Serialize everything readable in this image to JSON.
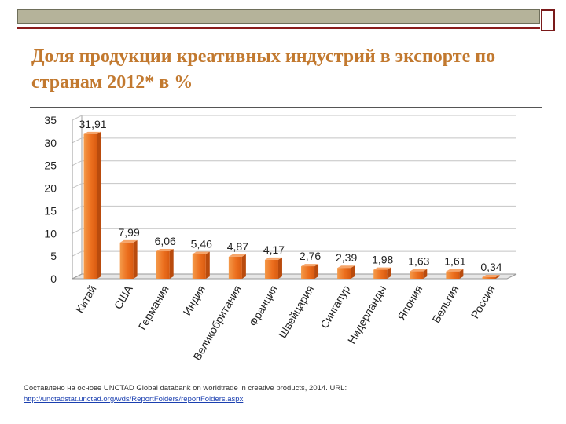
{
  "title": "Доля продукции креативных индустрий в экспорте по странам 2012* в %",
  "chart_data": {
    "type": "bar",
    "title": "Доля продукции креативных индустрий в экспорте по странам 2012* в %",
    "categories": [
      "Китай",
      "США",
      "Германия",
      "Индия",
      "Великобритания",
      "Франция",
      "Швейцария",
      "Сингапур",
      "Нидерланды",
      "Япония",
      "Бельгия",
      "Россия"
    ],
    "values": [
      31.91,
      7.99,
      6.06,
      5.46,
      4.87,
      4.17,
      2.76,
      2.39,
      1.98,
      1.63,
      1.61,
      0.34
    ],
    "data_labels": [
      "31,91",
      "7,99",
      "6,06",
      "5,46",
      "4,87",
      "4,17",
      "2,76",
      "2,39",
      "1,98",
      "1,63",
      "1,61",
      "0,34"
    ],
    "yticks": [
      "0",
      "5",
      "10",
      "15",
      "20",
      "25",
      "30",
      "35"
    ],
    "ylim": [
      0,
      35
    ],
    "xlabel": "",
    "ylabel": "",
    "grid": true,
    "bar_color": "#ec6f1e"
  },
  "footnote": {
    "text": "Составлено на основе UNCTAD Global databank on worldtrade in creative products, 2014. URL:",
    "url": "http://unctadstat.unctad.org/wds/ReportFolders/reportFolders.aspx"
  }
}
